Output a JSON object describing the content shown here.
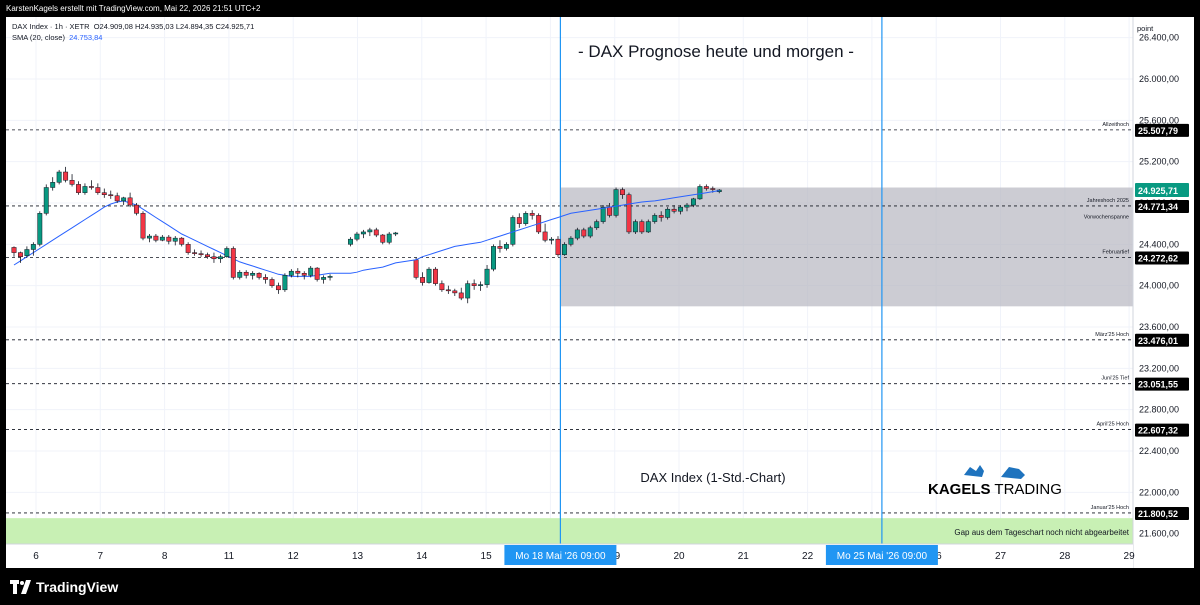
{
  "header": {
    "credit": "KarstenKagels erstellt mit TradingView.com, Mai 22, 2026 21:51 UTC+2"
  },
  "legend": {
    "symbol_line": "DAX Index · 1h · XETR",
    "ohlc": "O24.909,08  H24.935,03  L24.894,35  C24.925,71",
    "sma_label": "SMA (20, close)",
    "sma_value": "24.753,84"
  },
  "footer": {
    "logo_text": "TradingView"
  },
  "colors": {
    "up": "#089981",
    "down": "#f23645",
    "sma": "#2962ff",
    "vline": "#2196f3",
    "box": "#b7b7c0",
    "gap": "#c8f0b4",
    "price_tag": "#000000"
  },
  "chart_data": {
    "type": "candlestick",
    "title": "- DAX Prognose heute und morgen -",
    "annotation": "DAX Index (1-Std.-Chart)",
    "brand": {
      "prefix": "KAGELS",
      "suffix": "TRADING"
    },
    "y_axis_label": "point",
    "ylim": [
      21500,
      26600
    ],
    "y_ticks": [
      "21.600,00",
      "22.000,00",
      "22.400,00",
      "22.800,00",
      "23.200,00",
      "23.600,00",
      "24.000,00",
      "24.400,00",
      "24.800,00",
      "25.200,00",
      "25.600,00",
      "26.000,00",
      "26.400,00"
    ],
    "y_tick_values": [
      21600,
      22000,
      22400,
      22800,
      23200,
      23600,
      24000,
      24400,
      24800,
      25200,
      25600,
      26000,
      26400
    ],
    "x_ticks": [
      {
        "label": "6",
        "slot": 0
      },
      {
        "label": "7",
        "slot": 1
      },
      {
        "label": "8",
        "slot": 2
      },
      {
        "label": "11",
        "slot": 3
      },
      {
        "label": "12",
        "slot": 4
      },
      {
        "label": "13",
        "slot": 5
      },
      {
        "label": "14",
        "slot": 6
      },
      {
        "label": "15",
        "slot": 7
      },
      {
        "label": "19",
        "slot": 9
      },
      {
        "label": "20",
        "slot": 10
      },
      {
        "label": "21",
        "slot": 11
      },
      {
        "label": "22",
        "slot": 12
      },
      {
        "label": "26",
        "slot": 14
      },
      {
        "label": "27",
        "slot": 15
      },
      {
        "label": "28",
        "slot": 16
      },
      {
        "label": "29",
        "slot": 17
      }
    ],
    "x_highlight": [
      {
        "label": "Mo 18 Mai '26  09:00",
        "slot": 8
      },
      {
        "label": "Mo 25 Mai '26  09:00",
        "slot": 13
      }
    ],
    "levels": [
      {
        "name": "Allzeithoch",
        "value": 25507.79,
        "label": "25.507,79"
      },
      {
        "name": "Jahreshoch 2025",
        "value": 24771.34,
        "label": "24.771,34"
      },
      {
        "name": "Februartief",
        "value": 24272.62,
        "label": "24.272,62"
      },
      {
        "name": "März'25 Hoch",
        "value": 23476.01,
        "label": "23.476,01"
      },
      {
        "name": "Juni'25 Tief",
        "value": 23051.55,
        "label": "23.051,55"
      },
      {
        "name": "April'25 Hoch",
        "value": 22607.32,
        "label": "22.607,32"
      },
      {
        "name": "Januar'25 Hoch",
        "value": 21800.52,
        "label": "21.800,52"
      }
    ],
    "current_price": {
      "value": 24925.71,
      "label": "24.925,71"
    },
    "range_box": {
      "label": "Vorwochenspanne",
      "from_slot": 8,
      "to_slot": 13,
      "top": 24950,
      "bottom": 23800
    },
    "gap_zone": {
      "label": "Gap aus dem Tageschart noch nicht abgearbeitet",
      "top": 21750,
      "bottom": 21500
    },
    "candles": [
      [
        24370,
        24380,
        24280,
        24320
      ],
      [
        24320,
        24330,
        24220,
        24280
      ],
      [
        24290,
        24380,
        24270,
        24350
      ],
      [
        24350,
        24420,
        24290,
        24400
      ],
      [
        24400,
        24720,
        24380,
        24700
      ],
      [
        24700,
        24980,
        24680,
        24950
      ],
      [
        24950,
        25050,
        24920,
        25000
      ],
      [
        25000,
        25120,
        24980,
        25100
      ],
      [
        25100,
        25150,
        25000,
        25020
      ],
      [
        25020,
        25080,
        24960,
        24980
      ],
      [
        24980,
        25010,
        24880,
        24900
      ],
      [
        24900,
        24990,
        24880,
        24960
      ],
      [
        24960,
        25020,
        24930,
        24950
      ],
      [
        24950,
        24990,
        24880,
        24900
      ],
      [
        24900,
        24940,
        24850,
        24880
      ],
      [
        24880,
        24920,
        24840,
        24870
      ],
      [
        24870,
        24900,
        24800,
        24820
      ],
      [
        24820,
        24860,
        24780,
        24850
      ],
      [
        24850,
        24900,
        24760,
        24780
      ],
      [
        24780,
        24800,
        24680,
        24700
      ],
      [
        24700,
        24720,
        24440,
        24460
      ],
      [
        24460,
        24500,
        24420,
        24480
      ],
      [
        24480,
        24500,
        24420,
        24440
      ],
      [
        24440,
        24490,
        24430,
        24470
      ],
      [
        24470,
        24490,
        24400,
        24430
      ],
      [
        24430,
        24480,
        24390,
        24460
      ],
      [
        24460,
        24470,
        24380,
        24400
      ],
      [
        24400,
        24420,
        24300,
        24320
      ],
      [
        24320,
        24350,
        24290,
        24310
      ],
      [
        24310,
        24340,
        24280,
        24300
      ],
      [
        24300,
        24320,
        24260,
        24280
      ],
      [
        24280,
        24320,
        24220,
        24260
      ],
      [
        24260,
        24300,
        24220,
        24280
      ],
      [
        24280,
        24380,
        24270,
        24360
      ],
      [
        24360,
        24380,
        24060,
        24080
      ],
      [
        24080,
        24150,
        24060,
        24130
      ],
      [
        24130,
        24150,
        24070,
        24100
      ],
      [
        24100,
        24140,
        24060,
        24120
      ],
      [
        24120,
        24130,
        24060,
        24080
      ],
      [
        24080,
        24110,
        24020,
        24060
      ],
      [
        24060,
        24080,
        23980,
        24000
      ],
      [
        24000,
        24030,
        23920,
        23960
      ],
      [
        23960,
        24120,
        23940,
        24100
      ],
      [
        24100,
        24160,
        24080,
        24140
      ],
      [
        24140,
        24170,
        24080,
        24120
      ],
      [
        24120,
        24140,
        24060,
        24100
      ],
      [
        24100,
        24190,
        24080,
        24170
      ],
      [
        24170,
        24180,
        24040,
        24060
      ],
      [
        24060,
        24100,
        24020,
        24080
      ],
      [
        24080,
        24110,
        24050,
        24090
      ],
      [
        24400,
        24470,
        24380,
        24450
      ],
      [
        24450,
        24520,
        24430,
        24500
      ],
      [
        24500,
        24540,
        24460,
        24520
      ],
      [
        24520,
        24560,
        24480,
        24540
      ],
      [
        24540,
        24560,
        24470,
        24490
      ],
      [
        24490,
        24500,
        24400,
        24420
      ],
      [
        24420,
        24520,
        24400,
        24500
      ],
      [
        24500,
        24520,
        24480,
        24510
      ],
      [
        24250,
        24270,
        24060,
        24080
      ],
      [
        24080,
        24130,
        24000,
        24030
      ],
      [
        24030,
        24180,
        24020,
        24160
      ],
      [
        24160,
        24180,
        24000,
        24020
      ],
      [
        24020,
        24050,
        23940,
        23960
      ],
      [
        23960,
        24000,
        23920,
        23950
      ],
      [
        23950,
        23970,
        23900,
        23930
      ],
      [
        23930,
        23980,
        23860,
        23880
      ],
      [
        23880,
        24050,
        23830,
        24020
      ],
      [
        24020,
        24060,
        23960,
        24000
      ],
      [
        24000,
        24040,
        23950,
        24010
      ],
      [
        24010,
        24200,
        23980,
        24160
      ],
      [
        24160,
        24400,
        24140,
        24380
      ],
      [
        24380,
        24440,
        24320,
        24360
      ],
      [
        24360,
        24420,
        24340,
        24400
      ],
      [
        24400,
        24680,
        24380,
        24660
      ],
      [
        24660,
        24700,
        24560,
        24600
      ],
      [
        24600,
        24720,
        24580,
        24700
      ],
      [
        24700,
        24730,
        24640,
        24680
      ],
      [
        24680,
        24700,
        24500,
        24520
      ],
      [
        24520,
        24600,
        24420,
        24440
      ],
      [
        24440,
        24470,
        24400,
        24450
      ],
      [
        24450,
        24480,
        24280,
        24300
      ],
      [
        24300,
        24420,
        24290,
        24400
      ],
      [
        24400,
        24480,
        24380,
        24460
      ],
      [
        24460,
        24560,
        24440,
        24540
      ],
      [
        24540,
        24560,
        24460,
        24480
      ],
      [
        24480,
        24580,
        24460,
        24560
      ],
      [
        24560,
        24640,
        24540,
        24620
      ],
      [
        24620,
        24780,
        24600,
        24760
      ],
      [
        24760,
        24800,
        24660,
        24680
      ],
      [
        24680,
        24950,
        24660,
        24930
      ],
      [
        24930,
        24950,
        24840,
        24880
      ],
      [
        24880,
        24900,
        24500,
        24520
      ],
      [
        24520,
        24640,
        24500,
        24620
      ],
      [
        24620,
        24640,
        24500,
        24520
      ],
      [
        24520,
        24640,
        24510,
        24620
      ],
      [
        24620,
        24700,
        24600,
        24680
      ],
      [
        24680,
        24720,
        24620,
        24660
      ],
      [
        24660,
        24760,
        24640,
        24740
      ],
      [
        24740,
        24780,
        24700,
        24720
      ],
      [
        24720,
        24780,
        24690,
        24760
      ],
      [
        24760,
        24800,
        24720,
        24780
      ],
      [
        24780,
        24850,
        24760,
        24840
      ],
      [
        24840,
        24980,
        24830,
        24960
      ],
      [
        24960,
        24980,
        24920,
        24940
      ],
      [
        24940,
        24960,
        24900,
        24930
      ],
      [
        24909.08,
        24935.03,
        24894.35,
        24925.71
      ]
    ],
    "sma": [
      [
        24200,
        24240,
        24280,
        24320,
        24360,
        24400,
        24440,
        24480,
        24520,
        24560,
        24600,
        24640,
        24680,
        24720,
        24760,
        24790,
        24810,
        24820,
        24800,
        24780,
        24740,
        24700,
        24660,
        24620,
        24580,
        24540,
        24500,
        24470,
        24440,
        24410,
        24380,
        24350,
        24320,
        24290,
        24260,
        24230,
        24210,
        24190,
        24170,
        24150,
        24130,
        24110,
        24100,
        24090,
        24090,
        24090,
        24090,
        24100,
        24110,
        24120
      ]
    ]
  }
}
